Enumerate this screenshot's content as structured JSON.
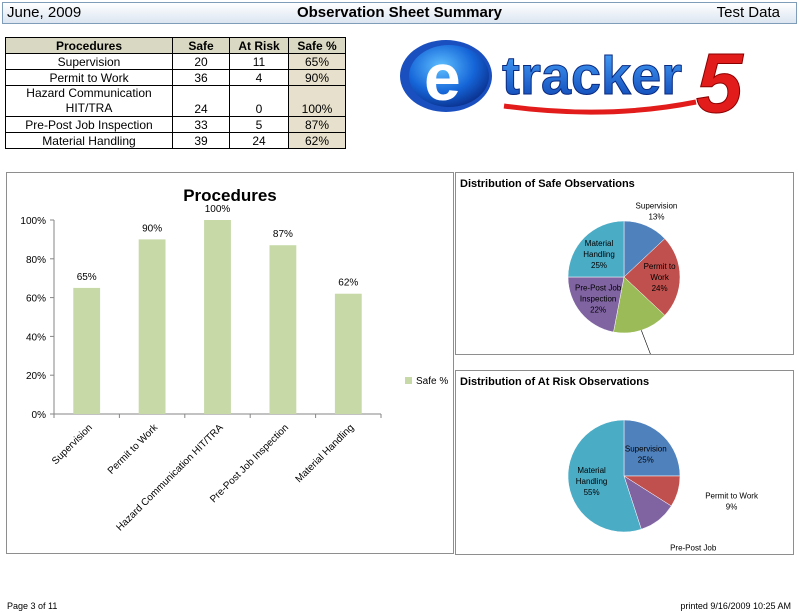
{
  "header": {
    "date": "June, 2009",
    "title": "Observation Sheet Summary",
    "right": "Test Data"
  },
  "table": {
    "headers": [
      "Procedures",
      "Safe",
      "At Risk",
      "Safe %"
    ],
    "rows": [
      {
        "procedure": "Supervision",
        "safe": "20",
        "at_risk": "11",
        "safe_pct": "65%"
      },
      {
        "procedure": "Permit to Work",
        "safe": "36",
        "at_risk": "4",
        "safe_pct": "90%"
      },
      {
        "procedure_line1": "Hazard Communication",
        "procedure_line2": "HIT/TRA",
        "safe": "24",
        "at_risk": "0",
        "safe_pct": "100%"
      },
      {
        "procedure": "Pre-Post Job Inspection",
        "safe": "33",
        "at_risk": "5",
        "safe_pct": "87%"
      },
      {
        "procedure": "Material Handling",
        "safe": "39",
        "at_risk": "24",
        "safe_pct": "62%"
      }
    ]
  },
  "logo": {
    "letter": "e",
    "word": "tracker",
    "number": "5"
  },
  "chart_data": [
    {
      "type": "bar",
      "title": "Procedures",
      "categories": [
        "Supervision",
        "Permit to Work",
        "Hazard Communication HIT/TRA",
        "Pre-Post Job Inspection",
        "Material Handling"
      ],
      "values": [
        65,
        90,
        100,
        87,
        62
      ],
      "labels": [
        "65%",
        "90%",
        "100%",
        "87%",
        "62%"
      ],
      "series_name": "Safe %",
      "ylim": [
        0,
        100
      ],
      "yticks": [
        "0%",
        "20%",
        "40%",
        "60%",
        "80%",
        "100%"
      ],
      "color": "#c6d9a6",
      "legend": "right"
    },
    {
      "type": "pie",
      "title": "Distribution of Safe Observations",
      "slices": [
        {
          "name": "Supervision",
          "value": 13,
          "label": "13%",
          "color": "#4f81bd"
        },
        {
          "name": "Permit to Work",
          "value": 24,
          "label": "24%",
          "color": "#c0504d"
        },
        {
          "name": "Hazard Communication HIT/TRA",
          "value": 16,
          "label": "16%",
          "color": "#9bbb59"
        },
        {
          "name": "Pre-Post Job Inspection",
          "value": 22,
          "label": "22%",
          "color": "#8064a2"
        },
        {
          "name": "Material Handling",
          "value": 25,
          "label": "25%",
          "color": "#4bacc6"
        }
      ]
    },
    {
      "type": "pie",
      "title": "Distribution of At Risk Observations",
      "slices": [
        {
          "name": "Supervision",
          "value": 25,
          "label": "25%",
          "color": "#4f81bd"
        },
        {
          "name": "Permit to Work",
          "value": 9,
          "label": "9%",
          "color": "#c0504d"
        },
        {
          "name": "Pre-Post Job Inspection",
          "value": 11,
          "label": "11%",
          "color": "#8064a2"
        },
        {
          "name": "Material Handling",
          "value": 55,
          "label": "55%",
          "color": "#4bacc6"
        }
      ]
    }
  ],
  "pie_labels": {
    "safe": [
      {
        "lines": [
          "Supervision",
          "13%"
        ]
      },
      {
        "lines": [
          "Permit to",
          "Work",
          "24%"
        ]
      },
      {
        "lines": [
          "Hazard",
          "Communication",
          "HIT/TRA",
          "16%"
        ]
      },
      {
        "lines": [
          "Pre-Post Job",
          "Inspection",
          "22%"
        ]
      },
      {
        "lines": [
          "Material",
          "Handling",
          "25%"
        ]
      }
    ],
    "risk": [
      {
        "lines": [
          "Supervision",
          "25%"
        ]
      },
      {
        "lines": [
          "Permit to Work",
          "9%"
        ]
      },
      {
        "lines": [
          "Pre-Post Job",
          "Inspection",
          "11%"
        ]
      },
      {
        "lines": [
          "Material",
          "Handling",
          "55%"
        ]
      }
    ]
  },
  "footer": {
    "page": "Page 3 of 11",
    "printed": "printed 9/16/2009 10:25 AM"
  }
}
